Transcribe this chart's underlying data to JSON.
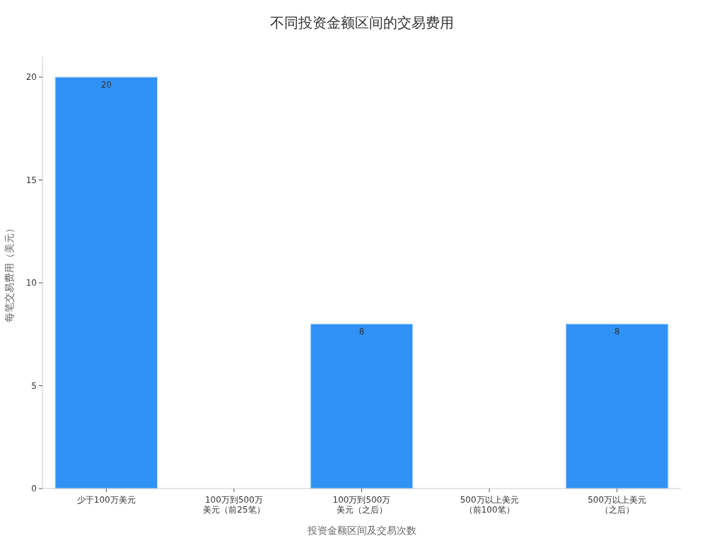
{
  "chart_data": {
    "type": "bar",
    "title": "不同投资金额区间的交易费用",
    "xlabel": "投资金额区间及交易次数",
    "ylabel": "每笔交易费用（美元）",
    "categories": [
      "少于100万美元",
      "100万到500万美元（前25笔）",
      "100万到500万美元（之后）",
      "500万以上美元（前100笔）",
      "500万以上美元（之后）"
    ],
    "values": [
      20,
      null,
      8,
      null,
      8
    ],
    "color": "#3092f5",
    "ylim": [
      0,
      21
    ],
    "yticks": [
      0,
      5,
      10,
      15,
      20
    ],
    "data_labels": true
  }
}
